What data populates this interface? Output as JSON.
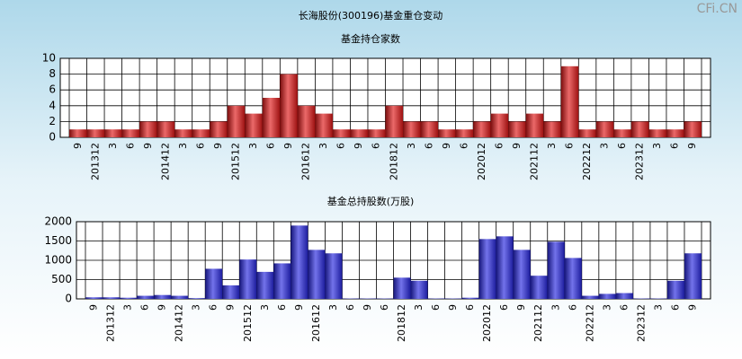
{
  "title": "长海股份(300196)基金重仓变动",
  "watermark": "CFi.CN",
  "chart_data": [
    {
      "type": "bar",
      "title": "基金持仓家数",
      "color": "#e01818",
      "grid": true,
      "categories": [
        "9",
        "201312",
        "3",
        "6",
        "9",
        "201412",
        "3",
        "6",
        "9",
        "201512",
        "3",
        "6",
        "9",
        "201612",
        "3",
        "6",
        "9",
        "6",
        "201812",
        "3",
        "6",
        "9",
        "6",
        "202012",
        "6",
        "9",
        "202112",
        "3",
        "6",
        "202212",
        "3",
        "6",
        "202312",
        "3",
        "6",
        "9"
      ],
      "values": [
        1,
        1,
        1,
        1,
        2,
        2,
        1,
        1,
        2,
        4,
        3,
        5,
        8,
        4,
        3,
        1,
        1,
        1,
        4,
        2,
        2,
        1,
        1,
        2,
        3,
        2,
        3,
        2,
        9,
        1,
        2,
        1,
        2,
        1,
        1,
        2
      ],
      "ylim": [
        0,
        10
      ],
      "yticks": [
        0,
        2,
        4,
        6,
        8,
        10
      ]
    },
    {
      "type": "bar",
      "title": "基金总持股数(万股)",
      "color": "#2828e0",
      "grid": true,
      "categories": [
        "9",
        "201312",
        "3",
        "6",
        "9",
        "201412",
        "3",
        "6",
        "9",
        "201512",
        "3",
        "6",
        "9",
        "201612",
        "3",
        "6",
        "9",
        "6",
        "201812",
        "3",
        "6",
        "9",
        "6",
        "202012",
        "6",
        "9",
        "202112",
        "3",
        "6",
        "202212",
        "3",
        "6",
        "202312",
        "3",
        "6",
        "9"
      ],
      "values": [
        40,
        40,
        30,
        80,
        100,
        80,
        20,
        780,
        350,
        1020,
        700,
        920,
        1900,
        1270,
        1180,
        10,
        10,
        10,
        550,
        470,
        10,
        10,
        30,
        1550,
        1620,
        1270,
        600,
        1480,
        1060,
        80,
        130,
        150,
        10,
        10,
        470,
        1180
      ],
      "ylim": [
        0,
        2000
      ],
      "yticks": [
        0,
        500,
        1000,
        1500,
        2000
      ]
    }
  ]
}
